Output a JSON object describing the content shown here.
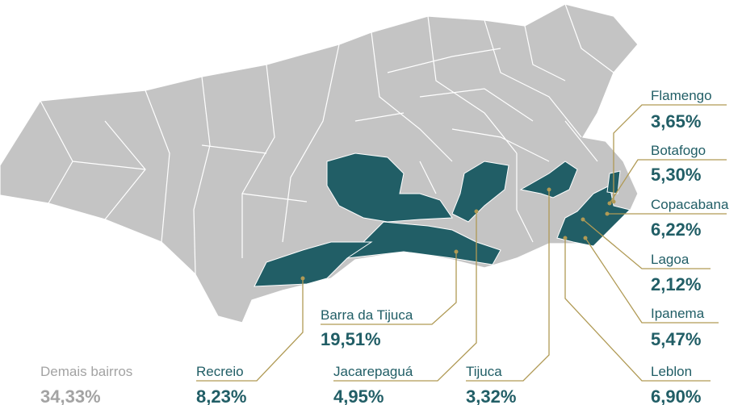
{
  "labels": [
    {
      "name": "Flamengo",
      "value": "3,65%"
    },
    {
      "name": "Botafogo",
      "value": "5,30%"
    },
    {
      "name": "Copacabana",
      "value": "6,22%"
    },
    {
      "name": "Lagoa",
      "value": "2,12%"
    },
    {
      "name": "Ipanema",
      "value": "5,47%"
    },
    {
      "name": "Leblon",
      "value": "6,90%"
    },
    {
      "name": "Barra da Tijuca",
      "value": "19,51%"
    },
    {
      "name": "Recreio",
      "value": "8,23%"
    },
    {
      "name": "Jacarepaguá",
      "value": "4,95%"
    },
    {
      "name": "Tijuca",
      "value": "3,32%"
    },
    {
      "name": "Demais bairros",
      "value": "34,33%"
    }
  ]
}
